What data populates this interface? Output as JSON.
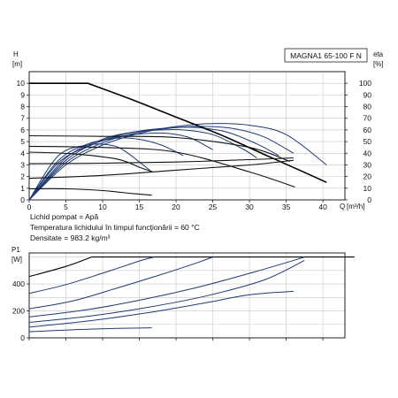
{
  "chart_data": [
    {
      "type": "line",
      "model": "MAGNA1 65-100 F N",
      "y_left": {
        "label": "H",
        "unit": "[m]",
        "ticks": [
          0,
          1,
          2,
          3,
          4,
          5,
          6,
          7,
          8,
          9,
          10
        ],
        "range": [
          0,
          11
        ]
      },
      "y_right": {
        "label": "eta",
        "unit": "[%]",
        "ticks": [
          0,
          10,
          20,
          30,
          40,
          50,
          60,
          70,
          80,
          90,
          100
        ],
        "range": [
          0,
          110
        ]
      },
      "x": {
        "label": "Q",
        "unit": "[m³/h]",
        "ticks": [
          0,
          5,
          10,
          15,
          20,
          25,
          30,
          35,
          40
        ],
        "range": [
          0,
          43
        ]
      },
      "grid": true,
      "head_curves": [
        {
          "points": [
            [
              0,
              10
            ],
            [
              8,
              10
            ],
            [
              14,
              8.6
            ],
            [
              20,
              7.1
            ],
            [
              26,
              5.6
            ],
            [
              32,
              3.9
            ],
            [
              37.7,
              2.3
            ],
            [
              40.5,
              1.5
            ]
          ]
        },
        {
          "points": [
            [
              0,
              5.5
            ],
            [
              10,
              5.45
            ],
            [
              20,
              5.35
            ],
            [
              30,
              4.5
            ],
            [
              35.5,
              3.3
            ]
          ]
        },
        {
          "points": [
            [
              0,
              4.6
            ],
            [
              10,
              4.5
            ],
            [
              20,
              4.1
            ],
            [
              30,
              2.4
            ],
            [
              36.2,
              1.1
            ]
          ]
        },
        {
          "points": [
            [
              0,
              4.1
            ],
            [
              6,
              3.95
            ],
            [
              12,
              3.5
            ],
            [
              15,
              2.8
            ],
            [
              16.8,
              2.4
            ]
          ]
        },
        {
          "points": [
            [
              0,
              3.1
            ],
            [
              10,
              3.15
            ],
            [
              20,
              3.25
            ],
            [
              30,
              3.45
            ],
            [
              36,
              3.6
            ]
          ]
        },
        {
          "points": [
            [
              0,
              1.85
            ],
            [
              10,
              2.1
            ],
            [
              20,
              2.55
            ],
            [
              30,
              3.0
            ],
            [
              36,
              3.4
            ]
          ]
        },
        {
          "points": [
            [
              0,
              0.95
            ],
            [
              5,
              0.95
            ],
            [
              10,
              0.8
            ],
            [
              14,
              0.55
            ],
            [
              16.7,
              0.4
            ]
          ]
        }
      ],
      "eta_curves": [
        {
          "points": [
            [
              0,
              0
            ],
            [
              5,
              30
            ],
            [
              10,
              47
            ],
            [
              15,
              57
            ],
            [
              20,
              63
            ],
            [
              25,
              65.5
            ],
            [
              30,
              64
            ],
            [
              35,
              56
            ],
            [
              40.5,
              30
            ]
          ]
        },
        {
          "points": [
            [
              0,
              0
            ],
            [
              5,
              32
            ],
            [
              10,
              49
            ],
            [
              15,
              58
            ],
            [
              20,
              62
            ],
            [
              24,
              63
            ],
            [
              28,
              61
            ],
            [
              32,
              54
            ],
            [
              36,
              40
            ]
          ]
        },
        {
          "points": [
            [
              0,
              0
            ],
            [
              5,
              34
            ],
            [
              10,
              51
            ],
            [
              15,
              59
            ],
            [
              20,
              62
            ],
            [
              23,
              62
            ],
            [
              27,
              58
            ],
            [
              31,
              48
            ],
            [
              34,
              38
            ]
          ]
        },
        {
          "points": [
            [
              0,
              0
            ],
            [
              5,
              36
            ],
            [
              10,
              52
            ],
            [
              14,
              58
            ],
            [
              18,
              60
            ],
            [
              21,
              60
            ],
            [
              25,
              56
            ],
            [
              29,
              44
            ],
            [
              31,
              36
            ]
          ]
        },
        {
          "points": [
            [
              0,
              0
            ],
            [
              4,
              32
            ],
            [
              8,
              46
            ],
            [
              12,
              54
            ],
            [
              16,
              57
            ],
            [
              19,
              57
            ],
            [
              22,
              53
            ],
            [
              25,
              43
            ]
          ]
        },
        {
          "points": [
            [
              0,
              0
            ],
            [
              4,
              34
            ],
            [
              8,
              48
            ],
            [
              12,
              53
            ],
            [
              15,
              52
            ],
            [
              18,
              47
            ],
            [
              21,
              38
            ]
          ]
        },
        {
          "points": [
            [
              0,
              0
            ],
            [
              4,
              38
            ],
            [
              8,
              47
            ],
            [
              11,
              47
            ],
            [
              13,
              42
            ],
            [
              16.5,
              25
            ]
          ]
        }
      ]
    },
    {
      "type": "line",
      "y": {
        "label": "P1",
        "unit": "[W]",
        "ticks": [
          0,
          200,
          400
        ],
        "range": [
          0,
          630
        ]
      },
      "x": {
        "ticks": [
          0,
          5,
          10,
          15,
          20,
          25,
          30,
          35,
          40
        ],
        "range": [
          0,
          43
        ]
      },
      "grid": true,
      "power_curves": [
        {
          "points": [
            [
              0,
              455
            ],
            [
              5,
              530
            ],
            [
              8.5,
              600
            ],
            [
              44.3,
              600
            ]
          ]
        },
        {
          "points": [
            [
              0,
              330
            ],
            [
              5,
              395
            ],
            [
              10,
              480
            ],
            [
              15,
              570
            ],
            [
              17,
              600
            ]
          ]
        },
        {
          "points": [
            [
              0,
              215
            ],
            [
              6,
              275
            ],
            [
              12,
              370
            ],
            [
              18,
              470
            ],
            [
              23,
              560
            ],
            [
              25,
              600
            ]
          ]
        },
        {
          "points": [
            [
              0,
              155
            ],
            [
              8,
              210
            ],
            [
              16,
              290
            ],
            [
              24,
              390
            ],
            [
              32,
              510
            ],
            [
              37.5,
              600
            ]
          ]
        },
        {
          "points": [
            [
              0,
              115
            ],
            [
              8,
              160
            ],
            [
              16,
              225
            ],
            [
              24,
              310
            ],
            [
              32,
              430
            ],
            [
              37.5,
              575
            ]
          ]
        },
        {
          "points": [
            [
              0,
              80
            ],
            [
              8,
              125
            ],
            [
              16,
              185
            ],
            [
              24,
              260
            ],
            [
              30,
              320
            ],
            [
              36,
              345
            ]
          ]
        },
        {
          "points": [
            [
              0,
              45
            ],
            [
              6,
              60
            ],
            [
              12,
              70
            ],
            [
              16.7,
              75
            ]
          ]
        }
      ]
    }
  ],
  "fluid": {
    "pumped": "Lichid pompat = Apă",
    "temperature": "Temperatura lichidului în timpul funcționării = 60 °C",
    "density": "Densitate = 983.2 kg/m³"
  }
}
